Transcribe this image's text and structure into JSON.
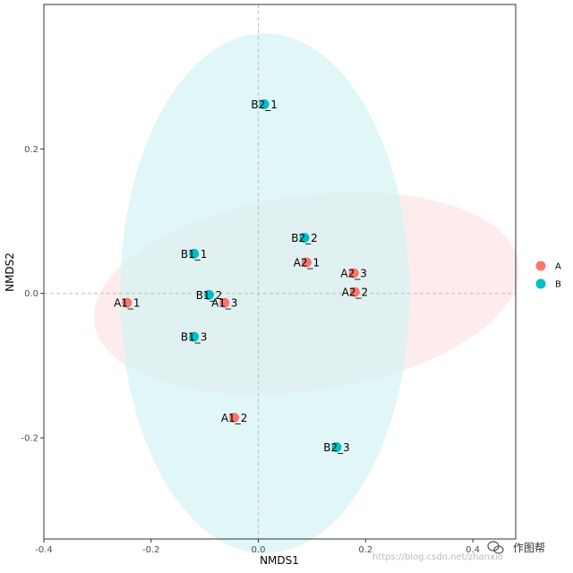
{
  "chart_data": {
    "type": "scatter",
    "title": "",
    "xlabel": "NMDS1",
    "ylabel": "NMDS2",
    "xlim": [
      -0.4,
      0.48
    ],
    "ylim": [
      -0.34,
      0.4
    ],
    "xticks": [
      -0.4,
      -0.2,
      0.0,
      0.2,
      0.4
    ],
    "xtick_labels": [
      "-0.4",
      "-0.2",
      "0.0",
      "0.2",
      "0.4"
    ],
    "yticks": [
      -0.2,
      0.0,
      0.2
    ],
    "ytick_labels": [
      "-0.2",
      "0.0",
      "0.2"
    ],
    "reference_lines": {
      "x": 0,
      "y": 0
    },
    "grid": false,
    "legend": {
      "position": "right",
      "entries": [
        {
          "name": "A",
          "color": "#F8766D"
        },
        {
          "name": "B",
          "color": "#00BFC4"
        }
      ]
    },
    "series": [
      {
        "name": "A",
        "color": "#F8766D",
        "ellipse": {
          "center": [
            0.09,
            0.0
          ],
          "rx_data": 0.4,
          "ry_data": 0.135,
          "rotation_deg": -8,
          "fill": "#FDE5E5"
        },
        "points": [
          {
            "label": "A1_1",
            "x": -0.245,
            "y": -0.013
          },
          {
            "label": "A1_2",
            "x": -0.045,
            "y": -0.172
          },
          {
            "label": "A1_3",
            "x": -0.063,
            "y": -0.013
          },
          {
            "label": "A2_1",
            "x": 0.09,
            "y": 0.043
          },
          {
            "label": "A2_2",
            "x": 0.18,
            "y": 0.002
          },
          {
            "label": "A2_3",
            "x": 0.178,
            "y": 0.028
          }
        ]
      },
      {
        "name": "B",
        "color": "#00BFC4",
        "ellipse": {
          "center": [
            0.012,
            0.0
          ],
          "rx_data": 0.27,
          "ry_data": 0.36,
          "rotation_deg": 0,
          "fill": "#D7F3F3"
        },
        "points": [
          {
            "label": "B1_1",
            "x": -0.12,
            "y": 0.055
          },
          {
            "label": "B1_2",
            "x": -0.092,
            "y": -0.002
          },
          {
            "label": "B1_3",
            "x": -0.12,
            "y": -0.06
          },
          {
            "label": "B2_1",
            "x": 0.011,
            "y": 0.262
          },
          {
            "label": "B2_2",
            "x": 0.086,
            "y": 0.077
          },
          {
            "label": "B2_3",
            "x": 0.146,
            "y": -0.213
          }
        ]
      }
    ]
  },
  "watermark": {
    "brand_text": "作图帮",
    "url_text": "https://blog.csdn.net/zhanxio"
  }
}
